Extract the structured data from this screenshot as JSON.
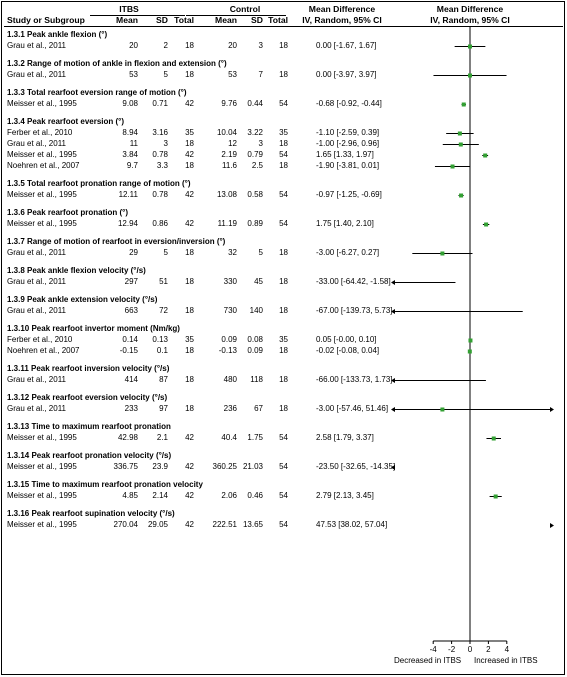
{
  "headers": {
    "study": "Study or Subgroup",
    "group1": "ITBS",
    "group2": "Control",
    "md_title": "Mean Difference",
    "md_sub": "IV, Random, 95% CI",
    "plot_title": "Mean Difference",
    "plot_sub": "IV, Random, 95% CI",
    "mean": "Mean",
    "sd": "SD",
    "total": "Total"
  },
  "footer": {
    "left_label": "Decreased in ITBS",
    "right_label": "Increased in ITBS"
  },
  "chart_data": {
    "type": "forest",
    "xlim": [
      -6,
      6
    ],
    "ticks": [
      -4,
      -2,
      0,
      2,
      4
    ],
    "tick_labels": [
      "-4",
      "-2",
      "0",
      "2",
      "4"
    ],
    "colors": {
      "marker": "#33a033",
      "line": "#000000"
    },
    "sections": [
      {
        "title": "1.3.1 Peak ankle flexion (°)",
        "rows": [
          {
            "study": "Grau et al., 2011",
            "m1": "20",
            "sd1": "2",
            "n1": "18",
            "m2": "20",
            "sd2": "3",
            "n2": "18",
            "ci_text": "0.00 [-1.67, 1.67]",
            "md": 0.0,
            "lo": -1.67,
            "hi": 1.67
          }
        ]
      },
      {
        "title": "1.3.2 Range of motion of ankle in flexion and extension (°)",
        "rows": [
          {
            "study": "Grau et al., 2011",
            "m1": "53",
            "sd1": "5",
            "n1": "18",
            "m2": "53",
            "sd2": "7",
            "n2": "18",
            "ci_text": "0.00 [-3.97, 3.97]",
            "md": 0.0,
            "lo": -3.97,
            "hi": 3.97
          }
        ]
      },
      {
        "title": "1.3.3 Total rearfoot eversion range of motion (°)",
        "rows": [
          {
            "study": "Meisser et al., 1995",
            "m1": "9.08",
            "sd1": "0.71",
            "n1": "42",
            "m2": "9.76",
            "sd2": "0.44",
            "n2": "54",
            "ci_text": "-0.68 [-0.92, -0.44]",
            "md": -0.68,
            "lo": -0.92,
            "hi": -0.44
          }
        ]
      },
      {
        "title": "1.3.4 Peak rearfoot eversion (°)",
        "rows": [
          {
            "study": "Ferber et al., 2010",
            "m1": "8.94",
            "sd1": "3.16",
            "n1": "35",
            "m2": "10.04",
            "sd2": "3.22",
            "n2": "35",
            "ci_text": "-1.10 [-2.59, 0.39]",
            "md": -1.1,
            "lo": -2.59,
            "hi": 0.39
          },
          {
            "study": "Grau et al., 2011",
            "m1": "11",
            "sd1": "3",
            "n1": "18",
            "m2": "12",
            "sd2": "3",
            "n2": "18",
            "ci_text": "-1.00 [-2.96, 0.96]",
            "md": -1.0,
            "lo": -2.96,
            "hi": 0.96
          },
          {
            "study": "Meisser et al., 1995",
            "m1": "3.84",
            "sd1": "0.78",
            "n1": "42",
            "m2": "2.19",
            "sd2": "0.79",
            "n2": "54",
            "ci_text": "1.65 [1.33, 1.97]",
            "md": 1.65,
            "lo": 1.33,
            "hi": 1.97
          },
          {
            "study": "Noehren et al., 2007",
            "m1": "9.7",
            "sd1": "3.3",
            "n1": "18",
            "m2": "11.6",
            "sd2": "2.5",
            "n2": "18",
            "ci_text": "-1.90 [-3.81, 0.01]",
            "md": -1.9,
            "lo": -3.81,
            "hi": 0.01
          }
        ]
      },
      {
        "title": "1.3.5 Total rearfoot pronation range of motion (°)",
        "rows": [
          {
            "study": "Meisser et al., 1995",
            "m1": "12.11",
            "sd1": "0.78",
            "n1": "42",
            "m2": "13.08",
            "sd2": "0.58",
            "n2": "54",
            "ci_text": "-0.97 [-1.25, -0.69]",
            "md": -0.97,
            "lo": -1.25,
            "hi": -0.69
          }
        ]
      },
      {
        "title": "1.3.6 Peak rearfoot pronation (°)",
        "rows": [
          {
            "study": "Meisser et al., 1995",
            "m1": "12.94",
            "sd1": "0.86",
            "n1": "42",
            "m2": "11.19",
            "sd2": "0.89",
            "n2": "54",
            "ci_text": "1.75 [1.40, 2.10]",
            "md": 1.75,
            "lo": 1.4,
            "hi": 2.1
          }
        ]
      },
      {
        "title": "1.3.7 Range of motion of rearfoot in eversion/inversion (°)",
        "rows": [
          {
            "study": "Grau et al., 2011",
            "m1": "29",
            "sd1": "5",
            "n1": "18",
            "m2": "32",
            "sd2": "5",
            "n2": "18",
            "ci_text": "-3.00 [-6.27, 0.27]",
            "md": -3.0,
            "lo": -6.27,
            "hi": 0.27
          }
        ]
      },
      {
        "title": "1.3.8 Peak ankle flexion velocity (°/s)",
        "rows": [
          {
            "study": "Grau et al., 2011",
            "m1": "297",
            "sd1": "51",
            "n1": "18",
            "m2": "330",
            "sd2": "45",
            "n2": "18",
            "ci_text": "-33.00 [-64.42, -1.58]",
            "md": -33.0,
            "lo": -64.42,
            "hi": -1.58
          }
        ]
      },
      {
        "title": "1.3.9 Peak ankle extension velocity (°/s)",
        "rows": [
          {
            "study": "Grau et al., 2011",
            "m1": "663",
            "sd1": "72",
            "n1": "18",
            "m2": "730",
            "sd2": "140",
            "n2": "18",
            "ci_text": "-67.00 [-139.73, 5.73]",
            "md": -67.0,
            "lo": -139.73,
            "hi": 5.73
          }
        ]
      },
      {
        "title": "1.3.10 Peak rearfoot invertor moment (Nm/kg)",
        "rows": [
          {
            "study": "Ferber et al., 2010",
            "m1": "0.14",
            "sd1": "0.13",
            "n1": "35",
            "m2": "0.09",
            "sd2": "0.08",
            "n2": "35",
            "ci_text": "0.05 [-0.00, 0.10]",
            "md": 0.05,
            "lo": -0.0,
            "hi": 0.1
          },
          {
            "study": "Noehren et al., 2007",
            "m1": "-0.15",
            "sd1": "0.1",
            "n1": "18",
            "m2": "-0.13",
            "sd2": "0.09",
            "n2": "18",
            "ci_text": "-0.02 [-0.08, 0.04]",
            "md": -0.02,
            "lo": -0.08,
            "hi": 0.04
          }
        ]
      },
      {
        "title": "1.3.11 Peak rearfoot inversion velocity (°/s)",
        "rows": [
          {
            "study": "Grau et al., 2011",
            "m1": "414",
            "sd1": "87",
            "n1": "18",
            "m2": "480",
            "sd2": "118",
            "n2": "18",
            "ci_text": "-66.00 [-133.73, 1.73]",
            "md": -66.0,
            "lo": -133.73,
            "hi": 1.73
          }
        ]
      },
      {
        "title": "1.3.12 Peak rearfoot eversion velocity (°/s)",
        "rows": [
          {
            "study": "Grau et al., 2011",
            "m1": "233",
            "sd1": "97",
            "n1": "18",
            "m2": "236",
            "sd2": "67",
            "n2": "18",
            "ci_text": "-3.00 [-57.46, 51.46]",
            "md": -3.0,
            "lo": -57.46,
            "hi": 51.46
          }
        ]
      },
      {
        "title": "1.3.13 Time to maximum rearfoot pronation",
        "rows": [
          {
            "study": "Meisser et al., 1995",
            "m1": "42.98",
            "sd1": "2.1",
            "n1": "42",
            "m2": "40.4",
            "sd2": "1.75",
            "n2": "54",
            "ci_text": "2.58 [1.79, 3.37]",
            "md": 2.58,
            "lo": 1.79,
            "hi": 3.37
          }
        ]
      },
      {
        "title": "1.3.14 Peak rearfoot pronation velocity (°/s)",
        "rows": [
          {
            "study": "Meisser et al., 1995",
            "m1": "336.75",
            "sd1": "23.9",
            "n1": "42",
            "m2": "360.25",
            "sd2": "21.03",
            "n2": "54",
            "ci_text": "-23.50 [-32.65, -14.35]",
            "md": -23.5,
            "lo": -32.65,
            "hi": -14.35
          }
        ]
      },
      {
        "title": "1.3.15 Time to maximum rearfoot pronation velocity",
        "rows": [
          {
            "study": "Meisser et al., 1995",
            "m1": "4.85",
            "sd1": "2.14",
            "n1": "42",
            "m2": "2.06",
            "sd2": "0.46",
            "n2": "54",
            "ci_text": "2.79 [2.13, 3.45]",
            "md": 2.79,
            "lo": 2.13,
            "hi": 3.45
          }
        ]
      },
      {
        "title": "1.3.16 Peak rearfoot supination velocity (°/s)",
        "rows": [
          {
            "study": "Meisser et al., 1995",
            "m1": "270.04",
            "sd1": "29.05",
            "n1": "42",
            "m2": "222.51",
            "sd2": "13.65",
            "n2": "54",
            "ci_text": "47.53 [38.02, 57.04]",
            "md": 47.53,
            "lo": 38.02,
            "hi": 57.04
          }
        ]
      }
    ]
  }
}
